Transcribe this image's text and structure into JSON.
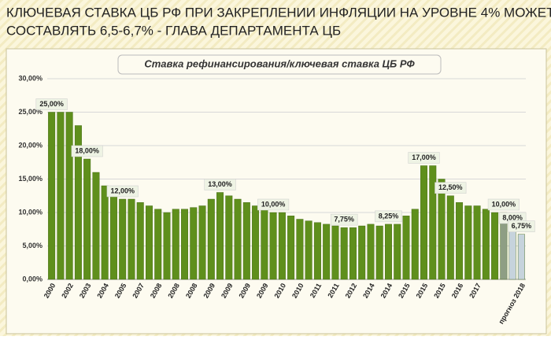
{
  "chart_data": {
    "type": "bar",
    "headline": [
      "КЛЮЧЕВАЯ СТАВКА ЦБ РФ ПРИ ЗАКРЕПЛЕНИИ ИНФЛЯЦИИ НА УРОВНЕ 4% МОЖЕТ",
      "СОСТАВЛЯТЬ 6,5-6,7% - ГЛАВА ДЕПАРТАМЕНТА ЦБ"
    ],
    "title": "Ставка рефинансирования/ключевая  ставка ЦБ РФ",
    "categories": [
      "2000",
      null,
      "2002",
      null,
      "2003",
      null,
      "2004",
      null,
      "2005",
      null,
      "2007",
      null,
      "2008",
      null,
      "2008",
      null,
      "2008",
      null,
      "2009",
      null,
      "2009",
      null,
      "2009",
      null,
      "2009",
      null,
      "2010",
      null,
      "2010",
      null,
      "2011",
      null,
      "2011",
      null,
      "2012",
      null,
      "2014",
      null,
      "2014",
      null,
      "2015",
      null,
      "2015",
      null,
      "2015",
      null,
      "2016",
      null,
      "2017",
      null,
      null,
      null,
      null,
      "прогноз 2018"
    ],
    "values": [
      25,
      25,
      25,
      23,
      18,
      16,
      14,
      13,
      12,
      12,
      11.5,
      11,
      10.5,
      10,
      10.5,
      10.5,
      10.75,
      11,
      12,
      13,
      12.5,
      12,
      11.5,
      11,
      10.5,
      10,
      10,
      9.5,
      9,
      8.75,
      8.5,
      8.25,
      8,
      7.75,
      7.75,
      8,
      8.25,
      8,
      8.25,
      8.25,
      9.5,
      10.5,
      17,
      17,
      15,
      12.5,
      11.5,
      11,
      11,
      10.5,
      10,
      10,
      8,
      6.75
    ],
    "value_labels": [
      "25,00%",
      null,
      null,
      null,
      "18,00%",
      null,
      null,
      null,
      "12,00%",
      null,
      null,
      null,
      null,
      null,
      null,
      null,
      null,
      null,
      null,
      "13,00%",
      null,
      null,
      null,
      null,
      null,
      "10,00%",
      null,
      null,
      null,
      null,
      null,
      null,
      null,
      "7,75%",
      null,
      null,
      null,
      null,
      "8,25%",
      null,
      null,
      null,
      "17,00%",
      null,
      null,
      "12,50%",
      null,
      null,
      null,
      null,
      null,
      "10,00%",
      "8,00%",
      "6,75%"
    ],
    "colors": [
      "#5f8f1c",
      "#5f8f1c",
      "#5f8f1c",
      "#5f8f1c",
      "#5f8f1c",
      "#5f8f1c",
      "#5f8f1c",
      "#5f8f1c",
      "#5f8f1c",
      "#5f8f1c",
      "#5f8f1c",
      "#5f8f1c",
      "#5f8f1c",
      "#5f8f1c",
      "#5f8f1c",
      "#5f8f1c",
      "#5f8f1c",
      "#5f8f1c",
      "#5f8f1c",
      "#5f8f1c",
      "#5f8f1c",
      "#5f8f1c",
      "#5f8f1c",
      "#5f8f1c",
      "#5f8f1c",
      "#5f8f1c",
      "#5f8f1c",
      "#5f8f1c",
      "#5f8f1c",
      "#5f8f1c",
      "#5f8f1c",
      "#5f8f1c",
      "#5f8f1c",
      "#5f8f1c",
      "#5f8f1c",
      "#5f8f1c",
      "#5f8f1c",
      "#5f8f1c",
      "#5f8f1c",
      "#5f8f1c",
      "#5f8f1c",
      "#5f8f1c",
      "#5f8f1c",
      "#5f8f1c",
      "#5f8f1c",
      "#5f8f1c",
      "#5f8f1c",
      "#5f8f1c",
      "#5f8f1c",
      "#5f8f1c",
      "#5f8f1c",
      "#8e9e84",
      "#c6d3dc",
      "#c6d3dc"
    ],
    "ylim": [
      0,
      30
    ],
    "yticks": [
      {
        "value": 0,
        "label": "0,00%"
      },
      {
        "value": 5,
        "label": "5,00%"
      },
      {
        "value": 10,
        "label": "10,00%"
      },
      {
        "value": 15,
        "label": "15,00%"
      },
      {
        "value": 20,
        "label": "20,00%"
      },
      {
        "value": 25,
        "label": "25,00%"
      },
      {
        "value": 30,
        "label": "30,00%"
      }
    ],
    "grid": true
  }
}
